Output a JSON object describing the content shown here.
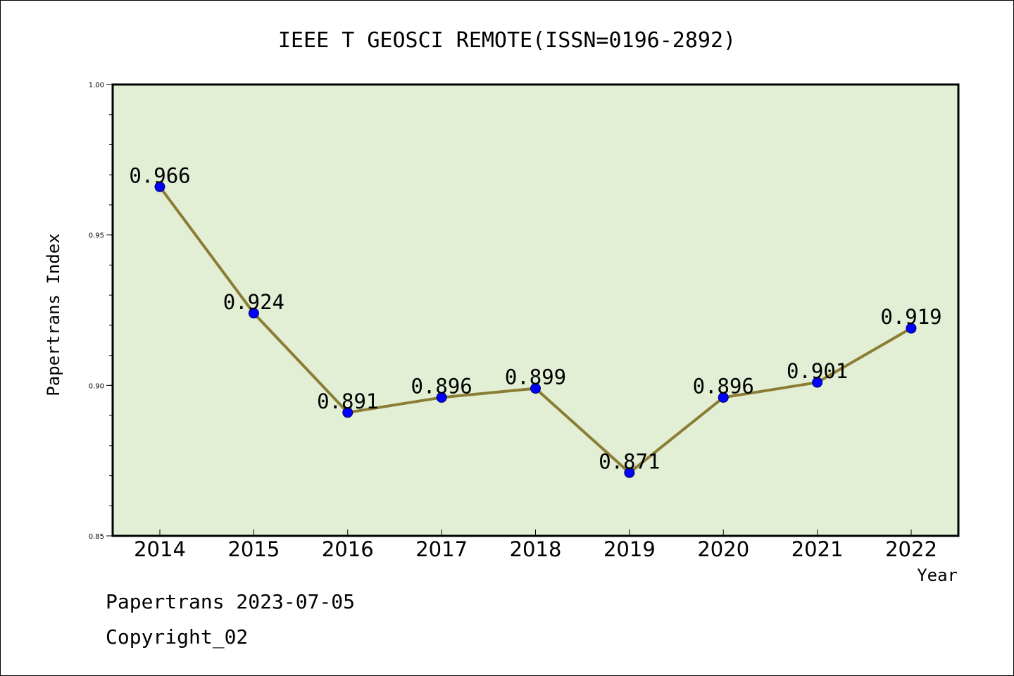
{
  "chart_data": {
    "type": "line",
    "title": "IEEE T GEOSCI REMOTE(ISSN=0196-2892)",
    "xlabel": "Year",
    "ylabel": "Papertrans Index",
    "categories": [
      "2014",
      "2015",
      "2016",
      "2017",
      "2018",
      "2019",
      "2020",
      "2021",
      "2022"
    ],
    "series": [
      {
        "values": [
          0.966,
          0.924,
          0.891,
          0.896,
          0.899,
          0.871,
          0.896,
          0.901,
          0.919
        ],
        "labels": [
          "0.966",
          "0.924",
          "0.891",
          "0.896",
          "0.899",
          "0.871",
          "0.896",
          "0.901",
          "0.919"
        ]
      }
    ],
    "ylim": [
      0.85,
      1.0
    ],
    "yticks": [
      "1.00",
      "0.95",
      "0.90",
      "0.85"
    ],
    "ytick_values": [
      1.0,
      0.95,
      0.9,
      0.85
    ],
    "grid": false,
    "plot_background": "#e2efd4",
    "line_color": "#8b7d35",
    "marker_color": "#0000ff"
  },
  "footer": {
    "line1": "Papertrans 2023-07-05",
    "line2": "Copyright_02"
  }
}
